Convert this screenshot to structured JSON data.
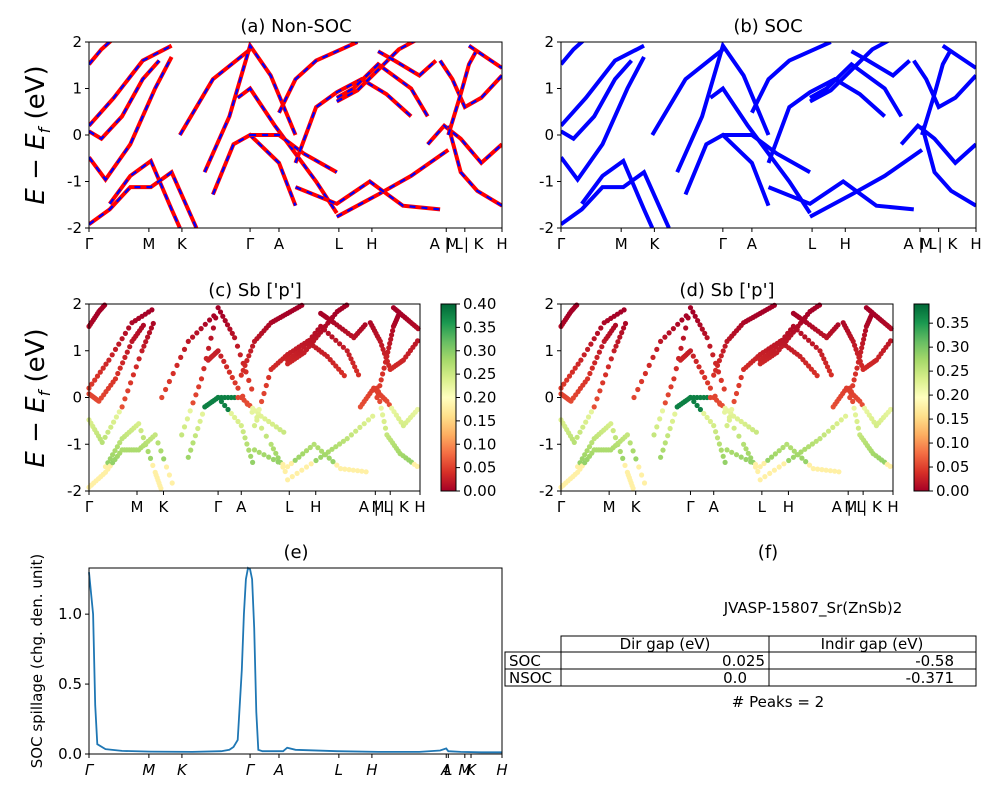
{
  "chart_data": [
    {
      "panel": "a",
      "type": "line",
      "title": "(a) Non-SOC",
      "ylabel_parts": [
        "E",
        "E",
        "f",
        "(eV)"
      ],
      "ylim": [
        -2,
        2
      ],
      "yticks": [
        -2,
        -1,
        0,
        1,
        2
      ],
      "xticks": [
        "Γ",
        "M",
        "K",
        "Γ",
        "A",
        "L",
        "H",
        "A | L",
        "M | K",
        "H"
      ],
      "xtick_pos": [
        0,
        0.145,
        0.225,
        0.39,
        0.46,
        0.605,
        0.685,
        0.865,
        0.91,
        1.0
      ],
      "series": [
        {
          "color": "#ff0000",
          "overlay_color": "#0000ff",
          "style": "dashed-overlay"
        }
      ]
    },
    {
      "panel": "b",
      "type": "line",
      "title": "(b) SOC",
      "ylim": [
        -2,
        2
      ],
      "yticks": [
        -2,
        -1,
        0,
        1,
        2
      ],
      "xticks": [
        "Γ",
        "M",
        "K",
        "Γ",
        "A",
        "L",
        "H",
        "A | L",
        "M | K",
        "H"
      ],
      "xtick_pos": [
        0,
        0.145,
        0.225,
        0.39,
        0.46,
        0.605,
        0.685,
        0.865,
        0.91,
        1.0
      ],
      "series": [
        {
          "color": "#0000ff"
        }
      ]
    },
    {
      "panel": "c",
      "type": "scatter",
      "title": "(c)  Sb ['p']",
      "ylabel_parts": [
        "E",
        "E",
        "f",
        "(eV)"
      ],
      "ylim": [
        -2,
        2
      ],
      "yticks": [
        -2,
        -1,
        0,
        1,
        2
      ],
      "xticks": [
        "Γ",
        "M",
        "K",
        "Γ",
        "A",
        "L",
        "H",
        "A | L",
        "M | K",
        "H"
      ],
      "xtick_pos": [
        0,
        0.145,
        0.225,
        0.39,
        0.46,
        0.605,
        0.685,
        0.865,
        0.91,
        1.0
      ],
      "colorbar": {
        "min": 0.0,
        "max": 0.4,
        "ticks": [
          "0.00",
          "0.05",
          "0.10",
          "0.15",
          "0.20",
          "0.25",
          "0.30",
          "0.35",
          "0.40"
        ],
        "cmap": "RdYlGn"
      }
    },
    {
      "panel": "d",
      "type": "scatter",
      "title": "(d) Sb ['p']",
      "ylim": [
        -2,
        2
      ],
      "yticks": [
        -2,
        -1,
        0,
        1,
        2
      ],
      "xticks": [
        "Γ",
        "M",
        "K",
        "Γ",
        "A",
        "L",
        "H",
        "A | L",
        "M | K",
        "H"
      ],
      "xtick_pos": [
        0,
        0.145,
        0.225,
        0.39,
        0.46,
        0.605,
        0.685,
        0.865,
        0.91,
        1.0
      ],
      "colorbar": {
        "min": 0.0,
        "max": 0.39,
        "ticks": [
          "0.00",
          "0.05",
          "0.10",
          "0.15",
          "0.20",
          "0.25",
          "0.30",
          "0.35"
        ],
        "cmap": "RdYlGn"
      }
    },
    {
      "panel": "e",
      "type": "line",
      "title": "(e)",
      "ylabel": "SOC spillage (chg. den. unit)",
      "ylim": [
        0,
        1.33
      ],
      "yticks": [
        "0.0",
        "0.5",
        "1.0"
      ],
      "ytick_vals": [
        0,
        0.5,
        1.0
      ],
      "xticks": [
        "Γ",
        "M",
        "K",
        "Γ",
        "A",
        "L",
        "H",
        "A",
        "L",
        "M",
        "K",
        "H"
      ],
      "xtick_pos": [
        0,
        0.145,
        0.225,
        0.39,
        0.46,
        0.605,
        0.685,
        0.865,
        0.87,
        0.91,
        0.925,
        1.0
      ],
      "series": [
        {
          "color": "#1f77b4",
          "x": [
            0,
            0.01,
            0.015,
            0.02,
            0.04,
            0.08,
            0.15,
            0.25,
            0.32,
            0.34,
            0.35,
            0.36,
            0.37,
            0.375,
            0.38,
            0.385,
            0.39,
            0.395,
            0.4,
            0.405,
            0.41,
            0.42,
            0.45,
            0.47,
            0.48,
            0.5,
            0.6,
            0.7,
            0.8,
            0.85,
            0.865,
            0.87,
            0.9,
            0.95,
            1.0
          ],
          "y": [
            1.3,
            1.0,
            0.35,
            0.07,
            0.035,
            0.022,
            0.017,
            0.015,
            0.02,
            0.03,
            0.05,
            0.1,
            0.6,
            1.0,
            1.25,
            1.33,
            1.32,
            1.25,
            0.9,
            0.3,
            0.03,
            0.02,
            0.02,
            0.02,
            0.045,
            0.03,
            0.02,
            0.015,
            0.015,
            0.025,
            0.04,
            0.02,
            0.015,
            0.012,
            0.012
          ]
        }
      ]
    }
  ],
  "panel_f": {
    "title": "(f)",
    "material": "JVASP-15807_Sr(ZnSb)2",
    "table": {
      "headers": [
        "Dir gap (eV)",
        "Indir gap (eV)"
      ],
      "rows": [
        {
          "label": "SOC",
          "dir": "0.025",
          "indir": "-0.58"
        },
        {
          "label": "NSOC",
          "dir": "0.0",
          "indir": "-0.371"
        }
      ]
    },
    "peaks": "# Peaks = 2"
  }
}
